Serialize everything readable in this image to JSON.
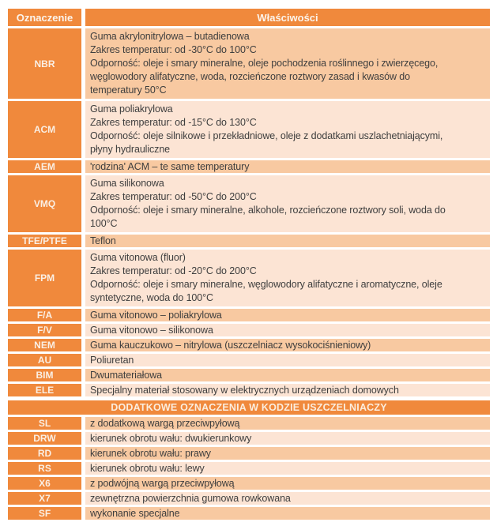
{
  "colors": {
    "accent_orange": "#F0893C",
    "row_shade_dark": "#F8C9A1",
    "row_shade_light": "#FCE4D4",
    "body_text": "#3E3E3E",
    "header_text": "#FCF4EC"
  },
  "table": {
    "header": {
      "code": "Oznaczenie",
      "properties": "Właściwości"
    },
    "materials": [
      {
        "code": "NBR",
        "desc": "Guma akrylonitrylowa – butadienowa\nZakres temperatur: od -30°C do 100°C\nOdporność: oleje i smary mineralne, oleje pochodzenia roślinnego i zwierzęcego,\nwęglowodory alifatyczne, woda, rozcieńczone roztwory zasad i kwasów do\ntemperatury 50°C"
      },
      {
        "code": "ACM",
        "desc": "Guma poliakrylowa\nZakres temperatur: od -15°C do 130°C\nOdporność: oleje silnikowe i przekładniowe, oleje z dodatkami uszlachetniającymi,\npłyny hydrauliczne"
      },
      {
        "code": "AEM",
        "desc": "'rodzina' ACM – te same temperatury"
      },
      {
        "code": "VMQ",
        "desc": "Guma silikonowa\nZakres temperatur: od -50°C do 200°C\nOdporność: oleje i smary mineralne, alkohole, rozcieńczone roztwory soli, woda do\n100°C"
      },
      {
        "code": "TFE/PTFE",
        "desc": "Teflon"
      },
      {
        "code": "FPM",
        "desc": "Guma vitonowa (fluor)\nZakres temperatur: od -20°C do 200°C\nOdporność: oleje i smary mineralne, węglowodory alifatyczne i aromatyczne, oleje\nsyntetyczne, woda do 100°C"
      },
      {
        "code": "F/A",
        "desc": "Guma vitonowo – poliakrylowa"
      },
      {
        "code": "F/V",
        "desc": "Guma vitonowo – silikonowa"
      },
      {
        "code": "NEM",
        "desc": "Guma kauczukowo – nitrylowa  (uszczelniacz wysokociśnieniowy)"
      },
      {
        "code": "AU",
        "desc": "Poliuretan"
      },
      {
        "code": "BIM",
        "desc": "Dwumateriałowa"
      },
      {
        "code": "ELE",
        "desc": "Specjalny materiał stosowany w elektrycznych urządzeniach domowych"
      }
    ]
  },
  "extras": {
    "title": "DODATKOWE OZNACZENIA W KODZIE USZCZELNIACZY",
    "rows": [
      {
        "code": "SL",
        "desc": "z dodatkową wargą przeciwpyłową"
      },
      {
        "code": "DRW",
        "desc": "kierunek obrotu wału: dwukierunkowy"
      },
      {
        "code": "RD",
        "desc": "kierunek obrotu wału: prawy"
      },
      {
        "code": "RS",
        "desc": "kierunek obrotu wału: lewy"
      },
      {
        "code": "X6",
        "desc": "z podwójną wargą przeciwpyłową"
      },
      {
        "code": "X7",
        "desc": "zewnętrzna powierzchnia gumowa rowkowana"
      },
      {
        "code": "SF",
        "desc": "wykonanie specjalne"
      }
    ]
  }
}
